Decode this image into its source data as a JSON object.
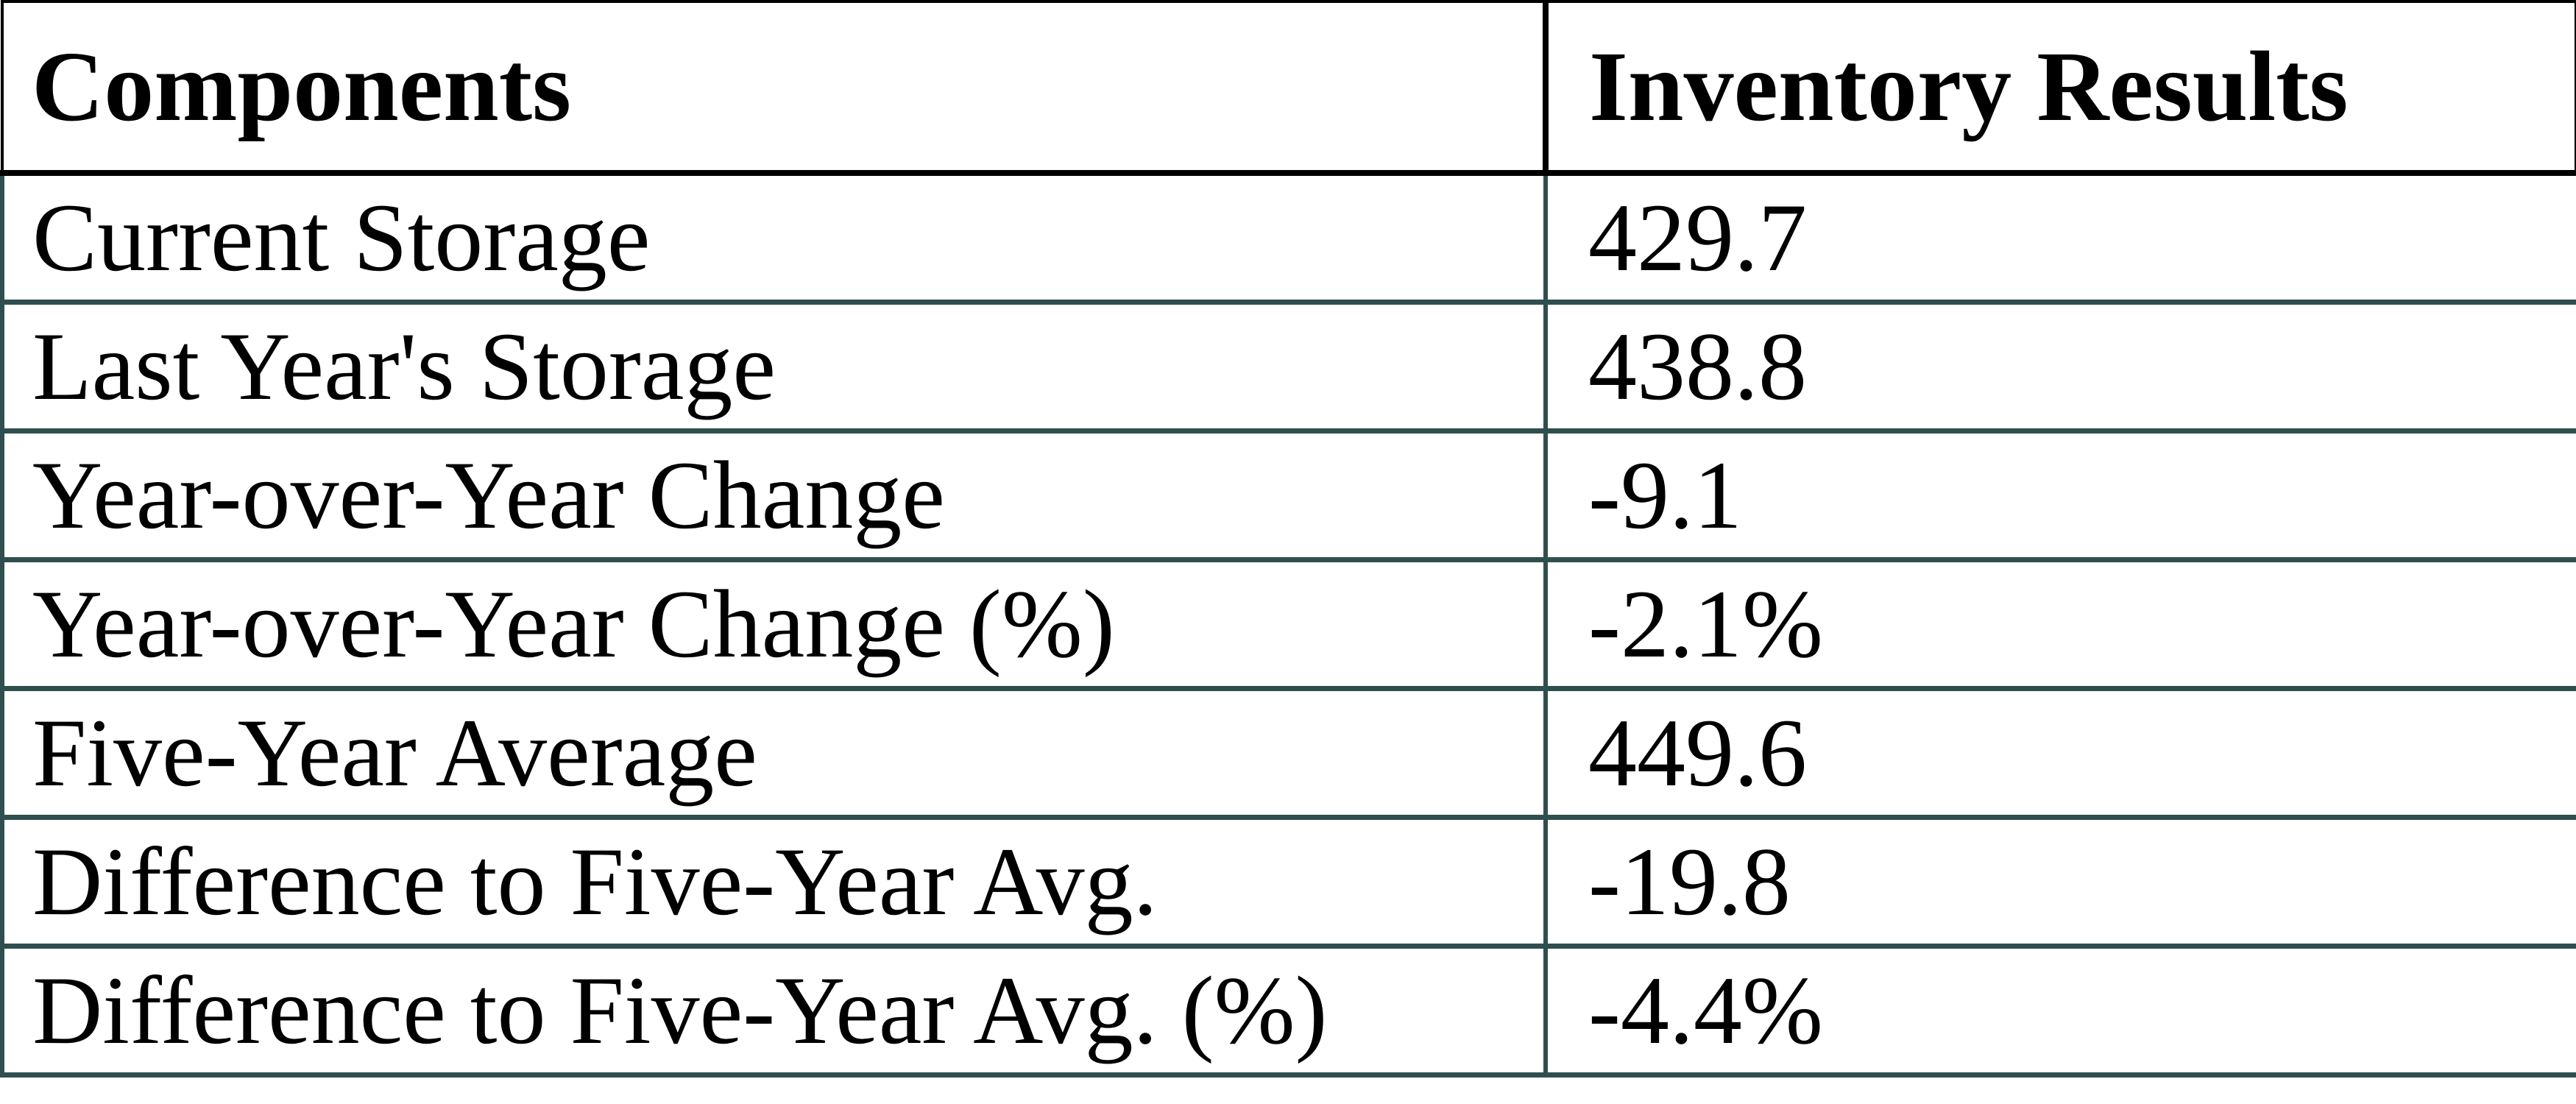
{
  "page": {
    "background": "#ffffff",
    "text_color": "#000000",
    "header_border_color": "#000000",
    "body_border_color": "#2F4F4E"
  },
  "table": {
    "headers": {
      "components": "Components",
      "inventory_results": "Inventory Results"
    },
    "rows": [
      {
        "component": "Current Storage",
        "value": "429.7"
      },
      {
        "component": "Last Year's Storage",
        "value": "438.8"
      },
      {
        "component": "Year-over-Year Change",
        "value": "-9.1"
      },
      {
        "component": "Year-over-Year Change (%)",
        "value": "-2.1%"
      },
      {
        "component": "Five-Year Average",
        "value": "449.6"
      },
      {
        "component": "Difference to Five-Year Avg.",
        "value": "-19.8"
      },
      {
        "component": "Difference to Five-Year Avg. (%)",
        "value": "-4.4%"
      }
    ]
  },
  "chart_data": {
    "type": "table",
    "title": "Inventory Results",
    "columns": [
      "Components",
      "Inventory Results"
    ],
    "rows": [
      [
        "Current Storage",
        "429.7"
      ],
      [
        "Last Year's Storage",
        "438.8"
      ],
      [
        "Year-over-Year Change",
        "-9.1"
      ],
      [
        "Year-over-Year Change (%)",
        "-2.1%"
      ],
      [
        "Five-Year Average",
        "449.6"
      ],
      [
        "Difference to Five-Year Avg.",
        "-19.8"
      ],
      [
        "Difference to Five-Year Avg. (%)",
        "-4.4%"
      ]
    ],
    "numeric_values": {
      "current_storage": 429.7,
      "last_year_storage": 438.8,
      "yoy_change": -9.1,
      "yoy_change_pct": -2.1,
      "five_year_average": 449.6,
      "diff_to_five_year_avg": -19.8,
      "diff_to_five_year_avg_pct": -4.4
    }
  }
}
